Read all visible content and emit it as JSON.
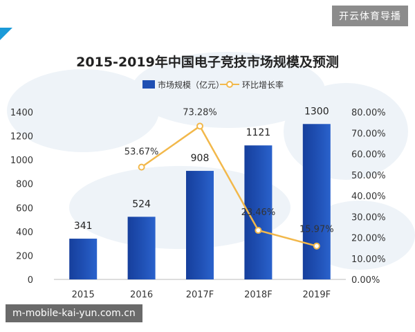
{
  "badges": {
    "top": "开云体育导播",
    "bottom": "m-mobile-kai-yun.com.cn"
  },
  "chart_data": {
    "type": "bar",
    "title": "2015-2019年中国电子竞技市场规模及预测",
    "categories": [
      "2015",
      "2016",
      "2017F",
      "2018F",
      "2019F"
    ],
    "series": [
      {
        "name": "市场规模（亿元）",
        "type": "bar",
        "values": [
          341,
          524,
          908,
          1121,
          1300
        ],
        "labels": [
          "341",
          "524",
          "908",
          "1121",
          "1300"
        ],
        "color": "#1f4fb3"
      },
      {
        "name": "环比增长率",
        "type": "line",
        "values": [
          null,
          53.67,
          73.28,
          23.46,
          15.97
        ],
        "labels": [
          "",
          "53.67%",
          "73.28%",
          "23.46%",
          "15.97%"
        ],
        "color": "#f2b84b"
      }
    ],
    "y_left": {
      "min": 0,
      "max": 1400,
      "ticks": [
        "0",
        "200",
        "400",
        "600",
        "800",
        "1000",
        "1200",
        "1400"
      ]
    },
    "y_right": {
      "min": 0,
      "max": 80,
      "ticks": [
        "0.00%",
        "10.00%",
        "20.00%",
        "30.00%",
        "40.00%",
        "50.00%",
        "60.00%",
        "70.00%",
        "80.00%"
      ]
    },
    "legend_position": "top-center",
    "grid": false
  }
}
